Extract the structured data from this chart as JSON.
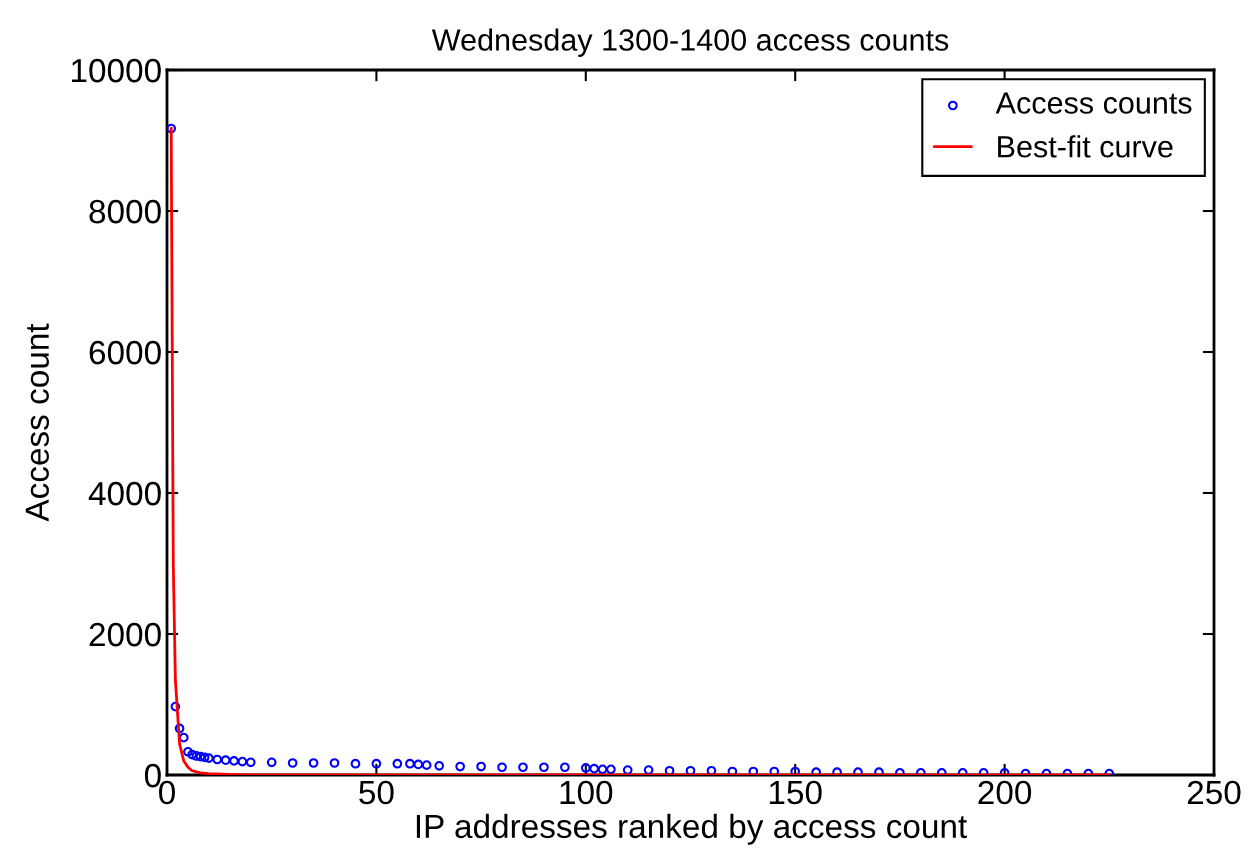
{
  "chart_data": {
    "type": "scatter",
    "title": "Wednesday 1300-1400 access counts",
    "xlabel": "IP addresses ranked by access count",
    "ylabel": "Access count",
    "xlim": [
      0,
      250
    ],
    "ylim": [
      0,
      10000
    ],
    "xticks": [
      0,
      50,
      100,
      150,
      200,
      250
    ],
    "yticks": [
      0,
      2000,
      4000,
      6000,
      8000,
      10000
    ],
    "grid": false,
    "legend": "top right",
    "series": [
      {
        "name": "Access counts",
        "color": "#0000ff",
        "marker": "circle",
        "x": [
          1,
          2,
          3,
          4,
          5,
          6,
          7,
          8,
          9,
          10,
          12,
          14,
          16,
          18,
          20,
          25,
          30,
          35,
          40,
          45,
          50,
          55,
          58,
          60,
          62,
          65,
          70,
          75,
          80,
          85,
          90,
          95,
          100,
          102,
          104,
          106,
          110,
          115,
          120,
          125,
          130,
          135,
          140,
          145,
          150,
          155,
          160,
          165,
          170,
          175,
          180,
          185,
          190,
          195,
          200,
          205,
          210,
          215,
          220,
          225
        ],
        "values": [
          9170,
          970,
          660,
          530,
          330,
          290,
          270,
          260,
          250,
          240,
          220,
          210,
          200,
          190,
          180,
          180,
          170,
          170,
          170,
          160,
          160,
          160,
          160,
          150,
          140,
          130,
          120,
          120,
          110,
          110,
          110,
          110,
          100,
          90,
          80,
          80,
          70,
          70,
          60,
          60,
          60,
          50,
          50,
          50,
          50,
          40,
          40,
          40,
          40,
          30,
          30,
          30,
          30,
          30,
          30,
          20,
          20,
          20,
          20,
          20
        ]
      },
      {
        "name": "Best-fit curve",
        "type": "line",
        "color": "#ff0000",
        "marker": "none",
        "line_style": "solid",
        "x": [
          1,
          1.5,
          2,
          3,
          4,
          5,
          6,
          8,
          10,
          15,
          20,
          30,
          50,
          100,
          150,
          225
        ],
        "values": [
          9170,
          2990,
          1350,
          440,
          200,
          110,
          60,
          30,
          20,
          10,
          0,
          0,
          0,
          0,
          0,
          0
        ]
      }
    ]
  }
}
